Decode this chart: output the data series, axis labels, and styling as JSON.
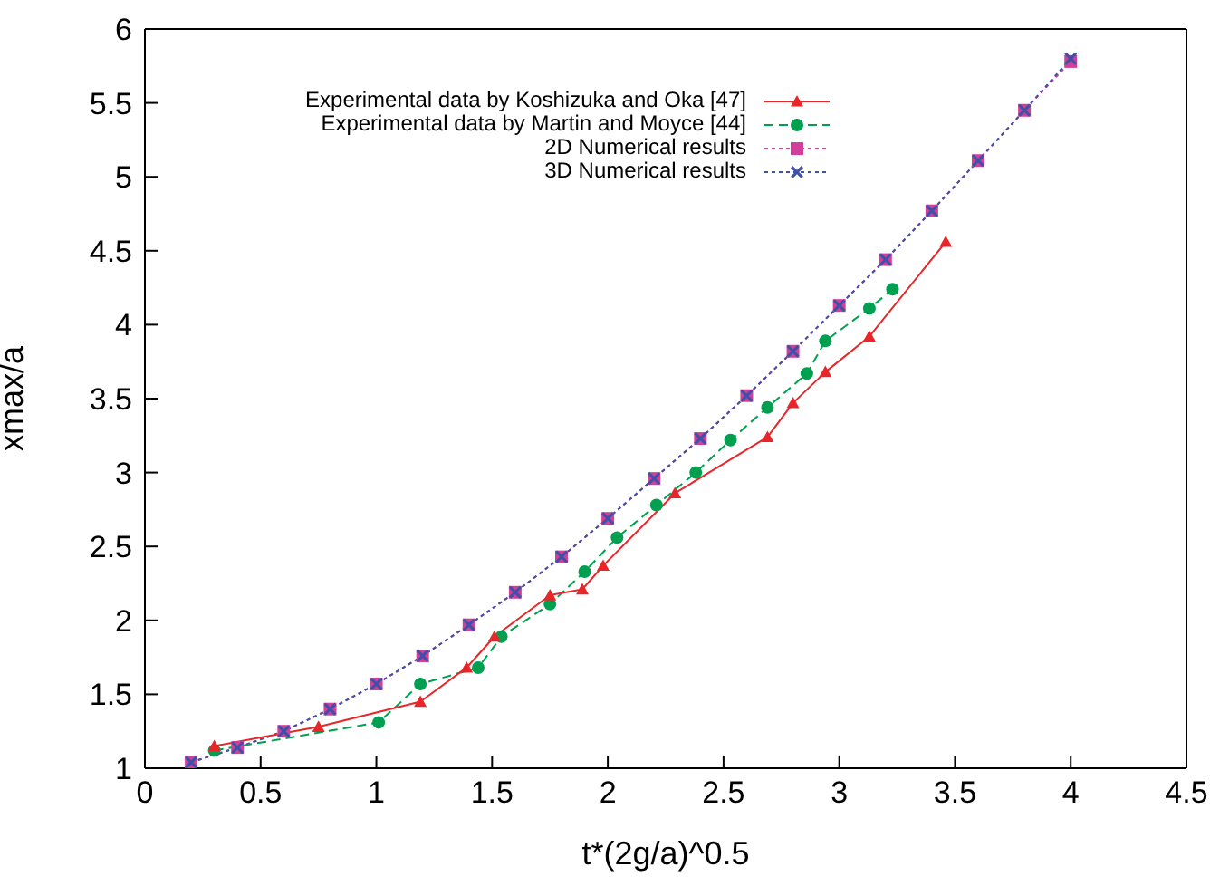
{
  "chart_data": {
    "type": "line",
    "xlabel": "t*(2g/a)^0.5",
    "ylabel": "xmax/a",
    "xlim": [
      0,
      4.5
    ],
    "xticks": [
      0,
      0.5,
      1,
      1.5,
      2,
      2.5,
      3,
      3.5,
      4,
      4.5
    ],
    "ylim": [
      1,
      6
    ],
    "yticks": [
      1,
      1.5,
      2,
      2.5,
      3,
      3.5,
      4,
      4.5,
      5,
      5.5,
      6
    ],
    "grid": false,
    "legend": "top left",
    "series": [
      {
        "name": "Experimental data by Koshizuka and Oka [47]",
        "color": "#e8262a",
        "marker": "triangle",
        "line_style": "solid",
        "x": [
          0.3,
          0.75,
          1.19,
          1.39,
          1.51,
          1.75,
          1.89,
          1.98,
          2.29,
          2.69,
          2.8,
          2.94,
          3.13,
          3.46
        ],
        "values": [
          1.15,
          1.28,
          1.45,
          1.68,
          1.89,
          2.17,
          2.21,
          2.37,
          2.86,
          3.24,
          3.47,
          3.68,
          3.92,
          4.56
        ]
      },
      {
        "name": "Experimental data by Martin and Moyce [44]",
        "color": "#00a050",
        "marker": "circle",
        "line_style": "dashed",
        "x": [
          0.3,
          1.01,
          1.19,
          1.44,
          1.54,
          1.75,
          1.9,
          2.04,
          2.21,
          2.38,
          2.53,
          2.69,
          2.86,
          2.94,
          3.13,
          3.23
        ],
        "values": [
          1.12,
          1.31,
          1.57,
          1.68,
          1.89,
          2.11,
          2.33,
          2.56,
          2.78,
          3.0,
          3.22,
          3.44,
          3.67,
          3.89,
          4.11,
          4.24
        ]
      },
      {
        "name": "2D Numerical results",
        "color": "#d0409a",
        "marker": "square",
        "line_style": "dotted",
        "x": [
          0.2,
          0.4,
          0.6,
          0.8,
          1.0,
          1.2,
          1.4,
          1.6,
          1.8,
          2.0,
          2.2,
          2.4,
          2.6,
          2.8,
          3.0,
          3.2,
          3.4,
          3.6,
          3.8,
          4.0
        ],
        "values": [
          1.04,
          1.14,
          1.25,
          1.4,
          1.57,
          1.76,
          1.97,
          2.19,
          2.43,
          2.69,
          2.96,
          3.23,
          3.52,
          3.82,
          4.13,
          4.44,
          4.77,
          5.11,
          5.45,
          5.78
        ]
      },
      {
        "name": "3D Numerical results",
        "color": "#4050a8",
        "marker": "cross",
        "line_style": "dotted",
        "x": [
          0.2,
          0.4,
          0.6,
          0.8,
          1.0,
          1.2,
          1.4,
          1.6,
          1.8,
          2.0,
          2.2,
          2.4,
          2.6,
          2.8,
          3.0,
          3.2,
          3.4,
          3.6,
          3.8,
          4.0
        ],
        "values": [
          1.04,
          1.14,
          1.25,
          1.4,
          1.57,
          1.76,
          1.97,
          2.19,
          2.43,
          2.69,
          2.96,
          3.23,
          3.52,
          3.82,
          4.13,
          4.44,
          4.77,
          5.11,
          5.45,
          5.8
        ]
      }
    ]
  }
}
